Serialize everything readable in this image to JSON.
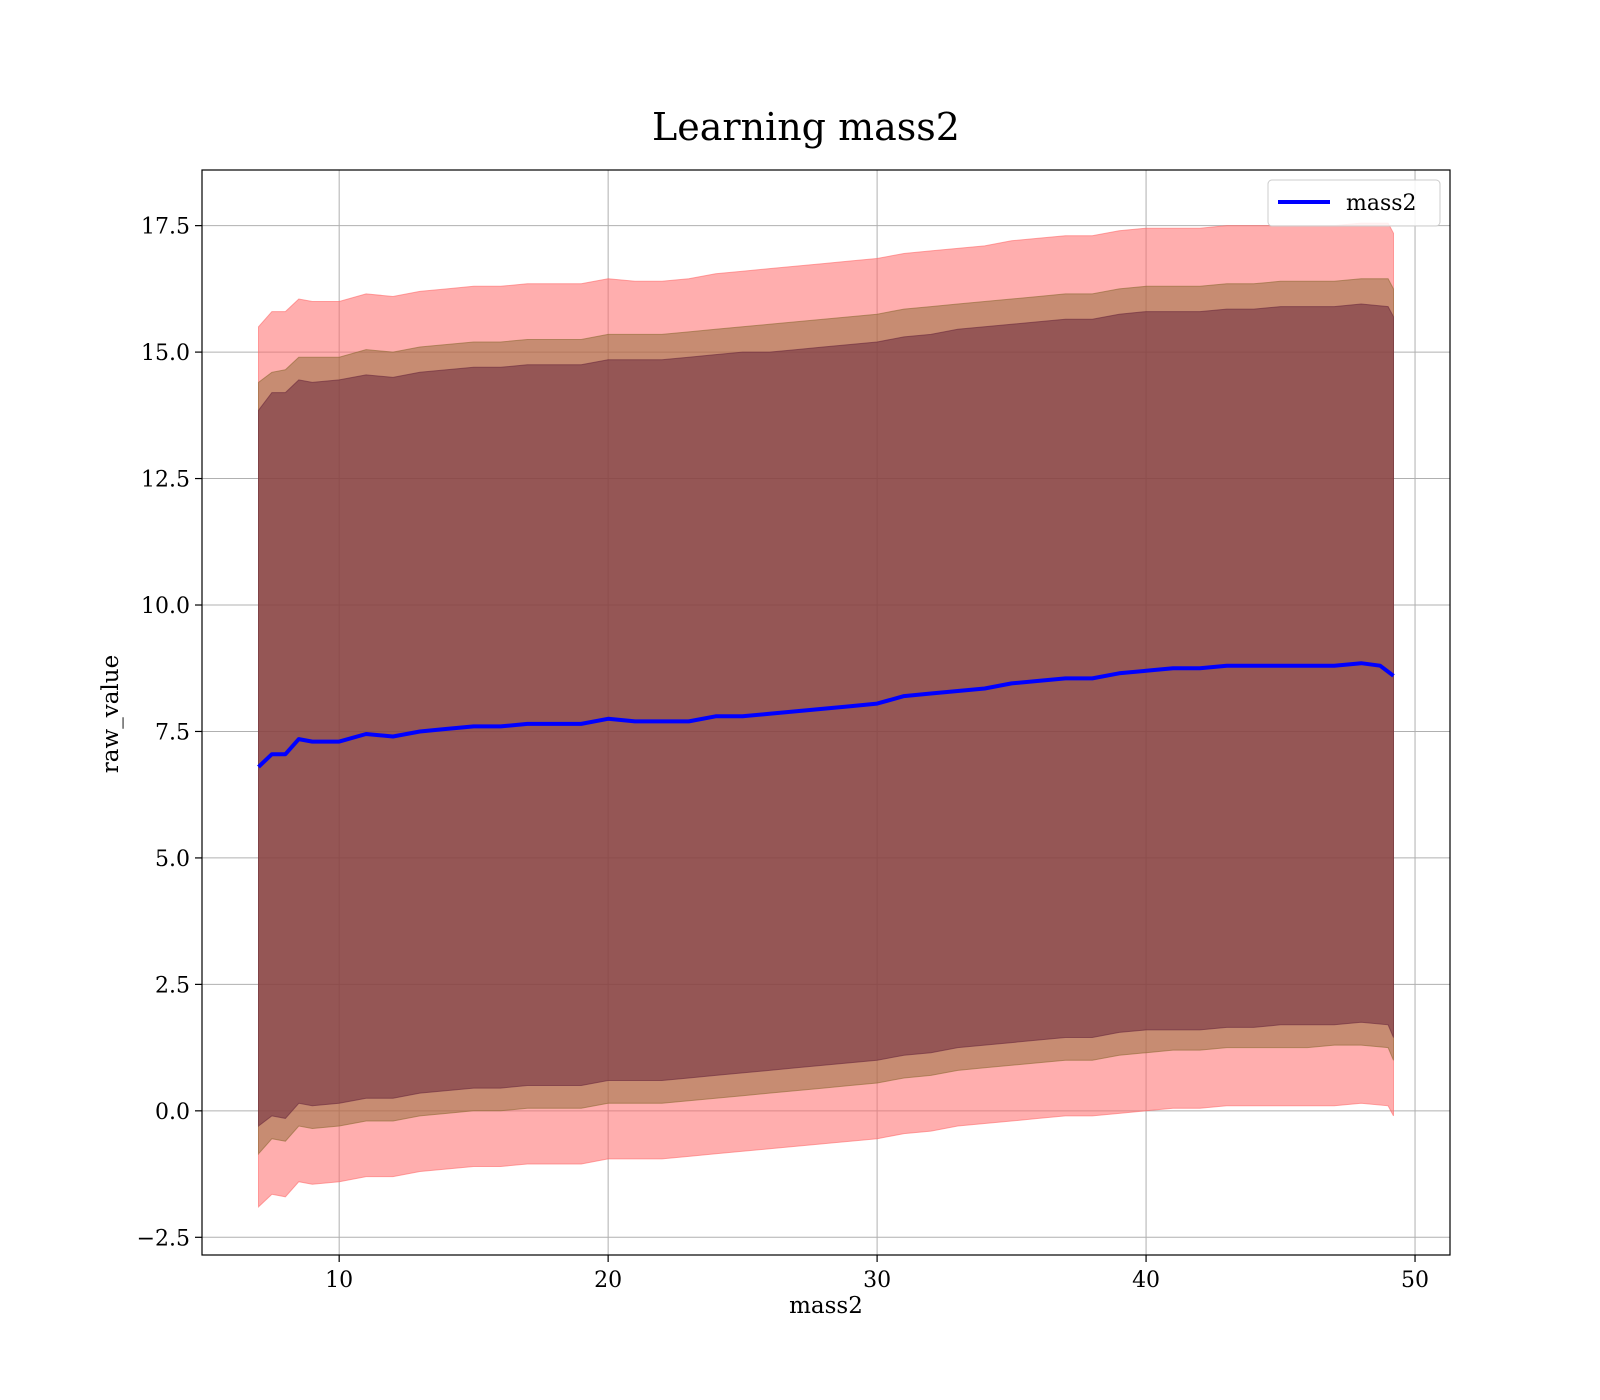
{
  "chart_data": {
    "type": "line",
    "title": "Learning mass2",
    "xlabel": "mass2",
    "ylabel": "raw_value",
    "xlim": [
      4.9,
      51.3
    ],
    "ylim": [
      -2.85,
      18.6
    ],
    "x_ticks": [
      10,
      20,
      30,
      40,
      50
    ],
    "x_tick_labels": [
      "10",
      "20",
      "30",
      "40",
      "50"
    ],
    "y_ticks": [
      -2.5,
      0.0,
      2.5,
      5.0,
      7.5,
      10.0,
      12.5,
      15.0,
      17.5
    ],
    "y_tick_labels": [
      "−2.5",
      "0.0",
      "2.5",
      "5.0",
      "7.5",
      "10.0",
      "12.5",
      "15.0",
      "17.5"
    ],
    "grid": true,
    "legend_position": "top-right",
    "series": [
      {
        "name": "mass2",
        "color": "#0000ff",
        "x": [
          7.0,
          7.5,
          8.0,
          8.5,
          9.0,
          10.0,
          11.0,
          12.0,
          13.0,
          14.0,
          15.0,
          16.0,
          17.0,
          18.0,
          19.0,
          20.0,
          21.0,
          22.0,
          23.0,
          24.0,
          25.0,
          26.0,
          27.0,
          28.0,
          29.0,
          30.0,
          31.0,
          32.0,
          33.0,
          34.0,
          35.0,
          36.0,
          37.0,
          38.0,
          39.0,
          40.0,
          41.0,
          42.0,
          43.0,
          44.0,
          45.0,
          46.0,
          47.0,
          48.0,
          48.7,
          49.2
        ],
        "values": [
          6.8,
          7.05,
          7.05,
          7.35,
          7.3,
          7.3,
          7.45,
          7.4,
          7.5,
          7.55,
          7.6,
          7.6,
          7.65,
          7.65,
          7.65,
          7.75,
          7.7,
          7.7,
          7.7,
          7.8,
          7.8,
          7.85,
          7.9,
          7.95,
          8.0,
          8.05,
          8.2,
          8.25,
          8.3,
          8.35,
          8.45,
          8.5,
          8.55,
          8.55,
          8.65,
          8.7,
          8.75,
          8.75,
          8.8,
          8.8,
          8.8,
          8.8,
          8.8,
          8.85,
          8.8,
          8.6
        ]
      }
    ],
    "bands": [
      {
        "color": "#ff6b6b",
        "opacity": 0.55,
        "x": [
          7.0,
          7.5,
          8.0,
          8.5,
          9.0,
          10.0,
          11.0,
          12.0,
          13.0,
          14.0,
          15.0,
          16.0,
          17.0,
          18.0,
          19.0,
          20.0,
          21.0,
          22.0,
          23.0,
          24.0,
          25.0,
          26.0,
          27.0,
          28.0,
          29.0,
          30.0,
          31.0,
          32.0,
          33.0,
          34.0,
          35.0,
          36.0,
          37.0,
          38.0,
          39.0,
          40.0,
          41.0,
          42.0,
          43.0,
          44.0,
          45.0,
          46.0,
          47.0,
          48.0,
          49.0,
          49.2
        ],
        "upper": [
          15.5,
          15.8,
          15.8,
          16.05,
          16.0,
          16.0,
          16.15,
          16.1,
          16.2,
          16.25,
          16.3,
          16.3,
          16.35,
          16.35,
          16.35,
          16.45,
          16.4,
          16.4,
          16.45,
          16.55,
          16.6,
          16.65,
          16.7,
          16.75,
          16.8,
          16.85,
          16.95,
          17.0,
          17.05,
          17.1,
          17.2,
          17.25,
          17.3,
          17.3,
          17.4,
          17.45,
          17.45,
          17.45,
          17.5,
          17.5,
          17.5,
          17.5,
          17.5,
          17.55,
          17.55,
          17.35
        ],
        "lower": [
          -1.9,
          -1.65,
          -1.7,
          -1.4,
          -1.45,
          -1.4,
          -1.3,
          -1.3,
          -1.2,
          -1.15,
          -1.1,
          -1.1,
          -1.05,
          -1.05,
          -1.05,
          -0.95,
          -0.95,
          -0.95,
          -0.9,
          -0.85,
          -0.8,
          -0.75,
          -0.7,
          -0.65,
          -0.6,
          -0.55,
          -0.45,
          -0.4,
          -0.3,
          -0.25,
          -0.2,
          -0.15,
          -0.1,
          -0.1,
          -0.05,
          0.0,
          0.05,
          0.05,
          0.1,
          0.1,
          0.1,
          0.1,
          0.1,
          0.15,
          0.1,
          -0.1
        ]
      },
      {
        "color": "#8f6a35",
        "opacity": 0.5,
        "x": [
          7.0,
          7.5,
          8.0,
          8.5,
          9.0,
          10.0,
          11.0,
          12.0,
          13.0,
          14.0,
          15.0,
          16.0,
          17.0,
          18.0,
          19.0,
          20.0,
          21.0,
          22.0,
          23.0,
          24.0,
          25.0,
          26.0,
          27.0,
          28.0,
          29.0,
          30.0,
          31.0,
          32.0,
          33.0,
          34.0,
          35.0,
          36.0,
          37.0,
          38.0,
          39.0,
          40.0,
          41.0,
          42.0,
          43.0,
          44.0,
          45.0,
          46.0,
          47.0,
          48.0,
          49.0,
          49.2
        ],
        "upper": [
          14.4,
          14.6,
          14.65,
          14.9,
          14.9,
          14.9,
          15.05,
          15.0,
          15.1,
          15.15,
          15.2,
          15.2,
          15.25,
          15.25,
          15.25,
          15.35,
          15.35,
          15.35,
          15.4,
          15.45,
          15.5,
          15.55,
          15.6,
          15.65,
          15.7,
          15.75,
          15.85,
          15.9,
          15.95,
          16.0,
          16.05,
          16.1,
          16.15,
          16.15,
          16.25,
          16.3,
          16.3,
          16.3,
          16.35,
          16.35,
          16.4,
          16.4,
          16.4,
          16.45,
          16.45,
          16.25
        ],
        "lower": [
          -0.85,
          -0.55,
          -0.6,
          -0.3,
          -0.35,
          -0.3,
          -0.2,
          -0.2,
          -0.1,
          -0.05,
          0.0,
          0.0,
          0.05,
          0.05,
          0.05,
          0.15,
          0.15,
          0.15,
          0.2,
          0.25,
          0.3,
          0.35,
          0.4,
          0.45,
          0.5,
          0.55,
          0.65,
          0.7,
          0.8,
          0.85,
          0.9,
          0.95,
          1.0,
          1.0,
          1.1,
          1.15,
          1.2,
          1.2,
          1.25,
          1.25,
          1.25,
          1.25,
          1.3,
          1.3,
          1.25,
          1.0
        ]
      },
      {
        "color": "#6b2a3e",
        "opacity": 0.55,
        "x": [
          7.0,
          7.5,
          8.0,
          8.5,
          9.0,
          10.0,
          11.0,
          12.0,
          13.0,
          14.0,
          15.0,
          16.0,
          17.0,
          18.0,
          19.0,
          20.0,
          21.0,
          22.0,
          23.0,
          24.0,
          25.0,
          26.0,
          27.0,
          28.0,
          29.0,
          30.0,
          31.0,
          32.0,
          33.0,
          34.0,
          35.0,
          36.0,
          37.0,
          38.0,
          39.0,
          40.0,
          41.0,
          42.0,
          43.0,
          44.0,
          45.0,
          46.0,
          47.0,
          48.0,
          49.0,
          49.2
        ],
        "upper": [
          13.85,
          14.2,
          14.2,
          14.45,
          14.4,
          14.45,
          14.55,
          14.5,
          14.6,
          14.65,
          14.7,
          14.7,
          14.75,
          14.75,
          14.75,
          14.85,
          14.85,
          14.85,
          14.9,
          14.95,
          15.0,
          15.0,
          15.05,
          15.1,
          15.15,
          15.2,
          15.3,
          15.35,
          15.45,
          15.5,
          15.55,
          15.6,
          15.65,
          15.65,
          15.75,
          15.8,
          15.8,
          15.8,
          15.85,
          15.85,
          15.9,
          15.9,
          15.9,
          15.95,
          15.9,
          15.7
        ],
        "lower": [
          -0.3,
          -0.1,
          -0.15,
          0.15,
          0.1,
          0.15,
          0.25,
          0.25,
          0.35,
          0.4,
          0.45,
          0.45,
          0.5,
          0.5,
          0.5,
          0.6,
          0.6,
          0.6,
          0.65,
          0.7,
          0.75,
          0.8,
          0.85,
          0.9,
          0.95,
          1.0,
          1.1,
          1.15,
          1.25,
          1.3,
          1.35,
          1.4,
          1.45,
          1.45,
          1.55,
          1.6,
          1.6,
          1.6,
          1.65,
          1.65,
          1.7,
          1.7,
          1.7,
          1.75,
          1.7,
          1.45
        ]
      }
    ]
  }
}
